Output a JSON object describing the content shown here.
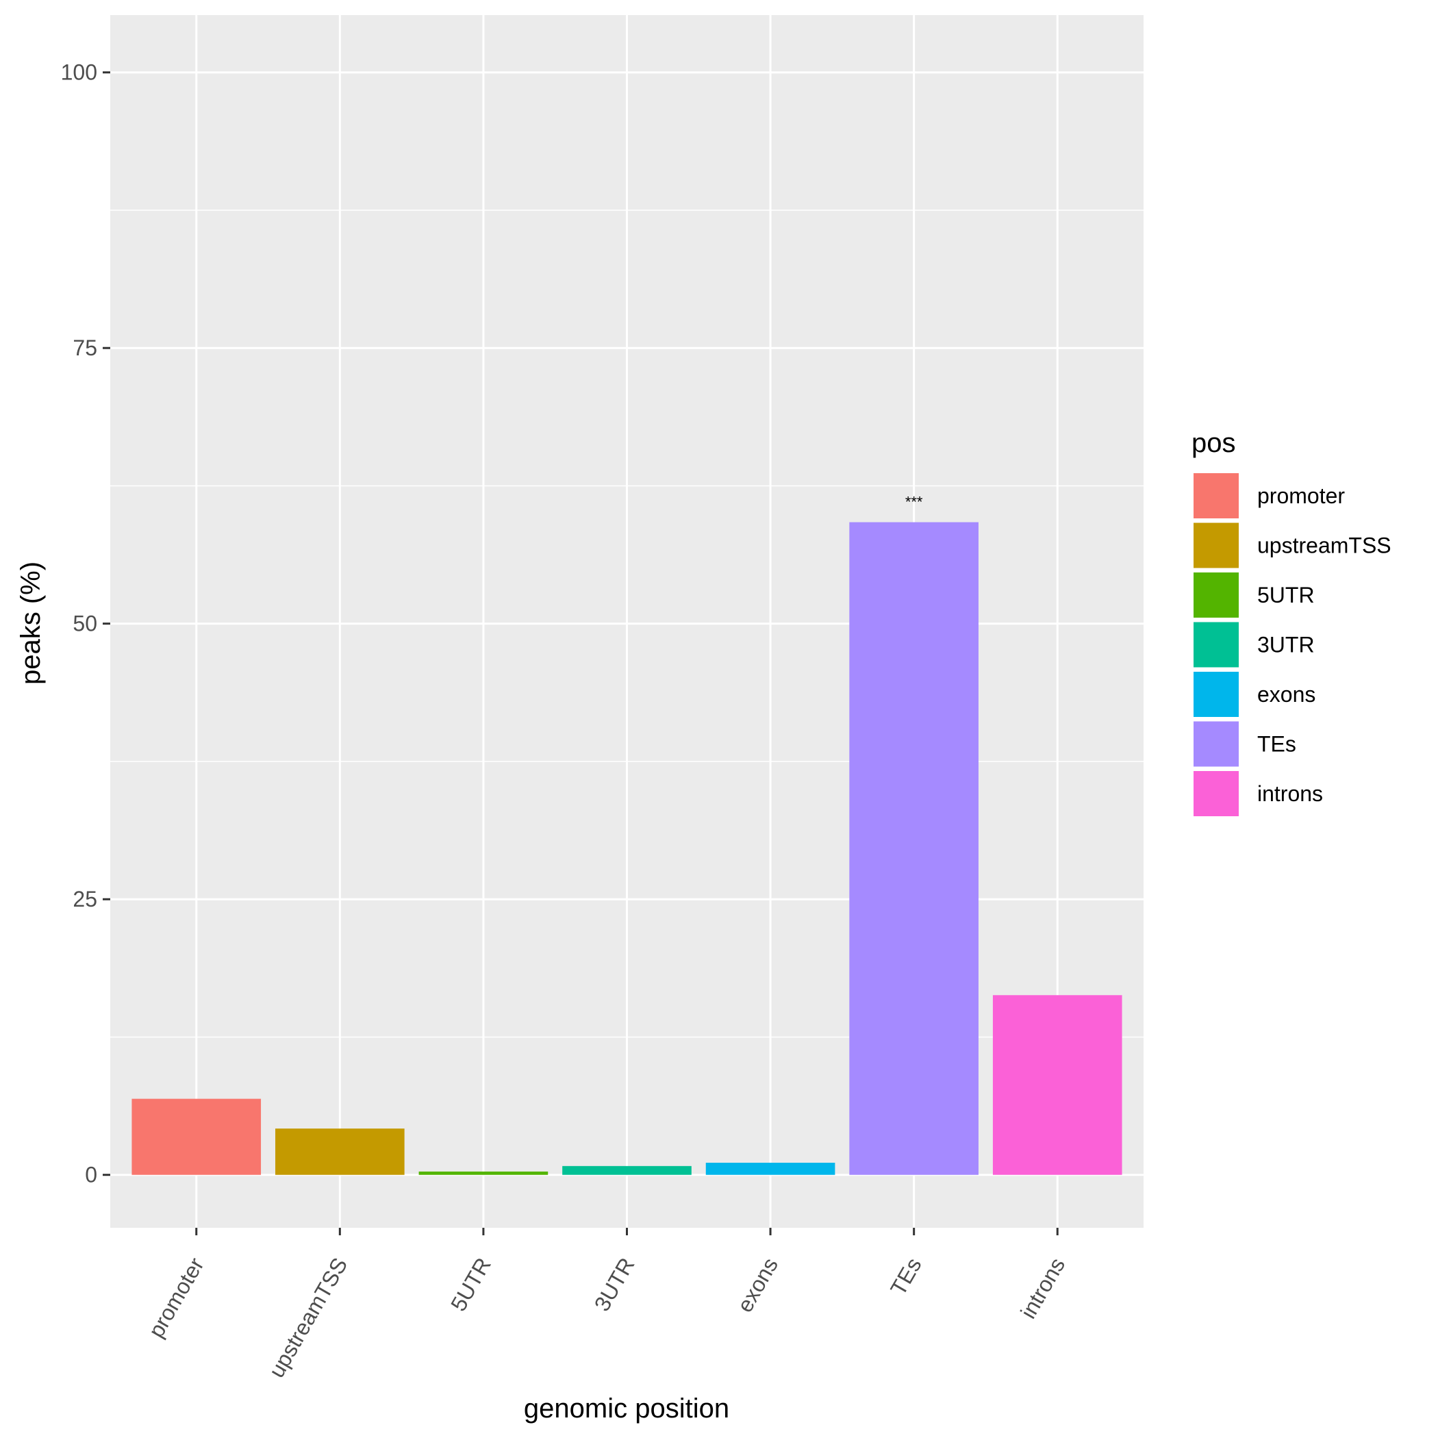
{
  "chart_data": {
    "type": "bar",
    "title": "",
    "xlabel": "genomic position",
    "ylabel": "peaks (%)",
    "categories": [
      "promoter",
      "upstreamTSS",
      "5UTR",
      "3UTR",
      "exons",
      "TEs",
      "introns"
    ],
    "values": [
      6.9,
      4.2,
      0.3,
      0.8,
      1.1,
      59.2,
      16.3
    ],
    "colors": [
      "#F8766D",
      "#C49A00",
      "#53B400",
      "#00C094",
      "#00B6EB",
      "#A58AFF",
      "#FB61D7"
    ],
    "annotations": [
      {
        "category": "TEs",
        "text": "***"
      }
    ],
    "ylim": [
      -4.8,
      105.2
    ],
    "yticks": [
      0,
      25,
      50,
      75,
      100
    ],
    "ytick_labels": [
      "0",
      "25",
      "50",
      "75",
      "100"
    ],
    "grid": true,
    "panel_background": "#EBEBEB",
    "legend": {
      "title": "pos",
      "position": "right",
      "entries": [
        "promoter",
        "upstreamTSS",
        "5UTR",
        "3UTR",
        "exons",
        "TEs",
        "introns"
      ]
    }
  }
}
